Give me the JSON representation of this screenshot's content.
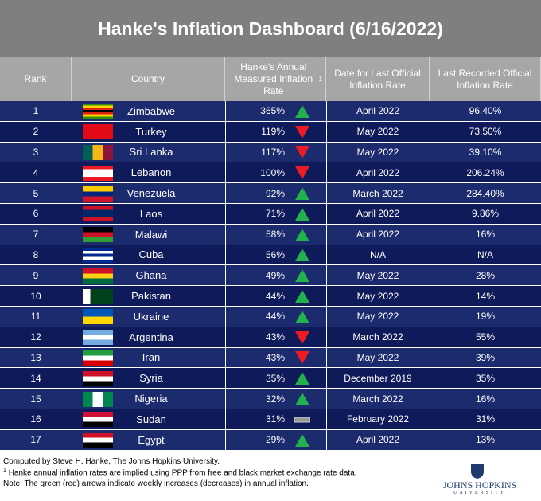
{
  "title": "Hanke's Inflation Dashboard (6/16/2022)",
  "header": {
    "rank": "Rank",
    "country": "Country",
    "rate": "Hanke's Annual Measured Inflation Rate",
    "rate_note": "1",
    "date": "Date for Last Official Inflation Rate",
    "official": "Last Recorded Official Inflation Rate"
  },
  "rows": [
    [
      1,
      "Zimbabwe",
      "365%",
      "up",
      "April 2022",
      "96.40%"
    ],
    [
      2,
      "Turkey",
      "119%",
      "down",
      "May 2022",
      "73.50%"
    ],
    [
      3,
      "Sri Lanka",
      "117%",
      "down",
      "May 2022",
      "39.10%"
    ],
    [
      4,
      "Lebanon",
      "100%",
      "down",
      "April 2022",
      "206.24%"
    ],
    [
      5,
      "Venezuela",
      "92%",
      "up",
      "March 2022",
      "284.40%"
    ],
    [
      6,
      "Laos",
      "71%",
      "up",
      "April 2022",
      "9.86%"
    ],
    [
      7,
      "Malawi",
      "58%",
      "up",
      "April 2022",
      "16%"
    ],
    [
      8,
      "Cuba",
      "56%",
      "up",
      "N/A",
      "N/A"
    ],
    [
      9,
      "Ghana",
      "49%",
      "up",
      "May 2022",
      "28%"
    ],
    [
      10,
      "Pakistan",
      "44%",
      "up",
      "May 2022",
      "14%"
    ],
    [
      11,
      "Ukraine",
      "44%",
      "up",
      "May 2022",
      "19%"
    ],
    [
      12,
      "Argentina",
      "43%",
      "down",
      "March 2022",
      "55%"
    ],
    [
      13,
      "Iran",
      "43%",
      "down",
      "May 2022",
      "39%"
    ],
    [
      14,
      "Syria",
      "35%",
      "up",
      "December 2019",
      "35%"
    ],
    [
      15,
      "Nigeria",
      "32%",
      "up",
      "March 2022",
      "16%"
    ],
    [
      16,
      "Sudan",
      "31%",
      "flat",
      "February 2022",
      "31%"
    ],
    [
      17,
      "Egypt",
      "29%",
      "up",
      "April 2022",
      "13%"
    ]
  ],
  "footer": {
    "credit": "Computed by Steve H. Hanke, The Johns Hopkins University.",
    "note1_mark": "1",
    "note1": "Hanke annual inflation rates are implied using PPP from free and black market exchange rate data.",
    "note2": "Note: The green (red) arrows indicate weekly increases (decreases) in annual inflation."
  },
  "logo": {
    "name": "JOHNS HOPKINS",
    "sub": "UNIVERSITY"
  }
}
